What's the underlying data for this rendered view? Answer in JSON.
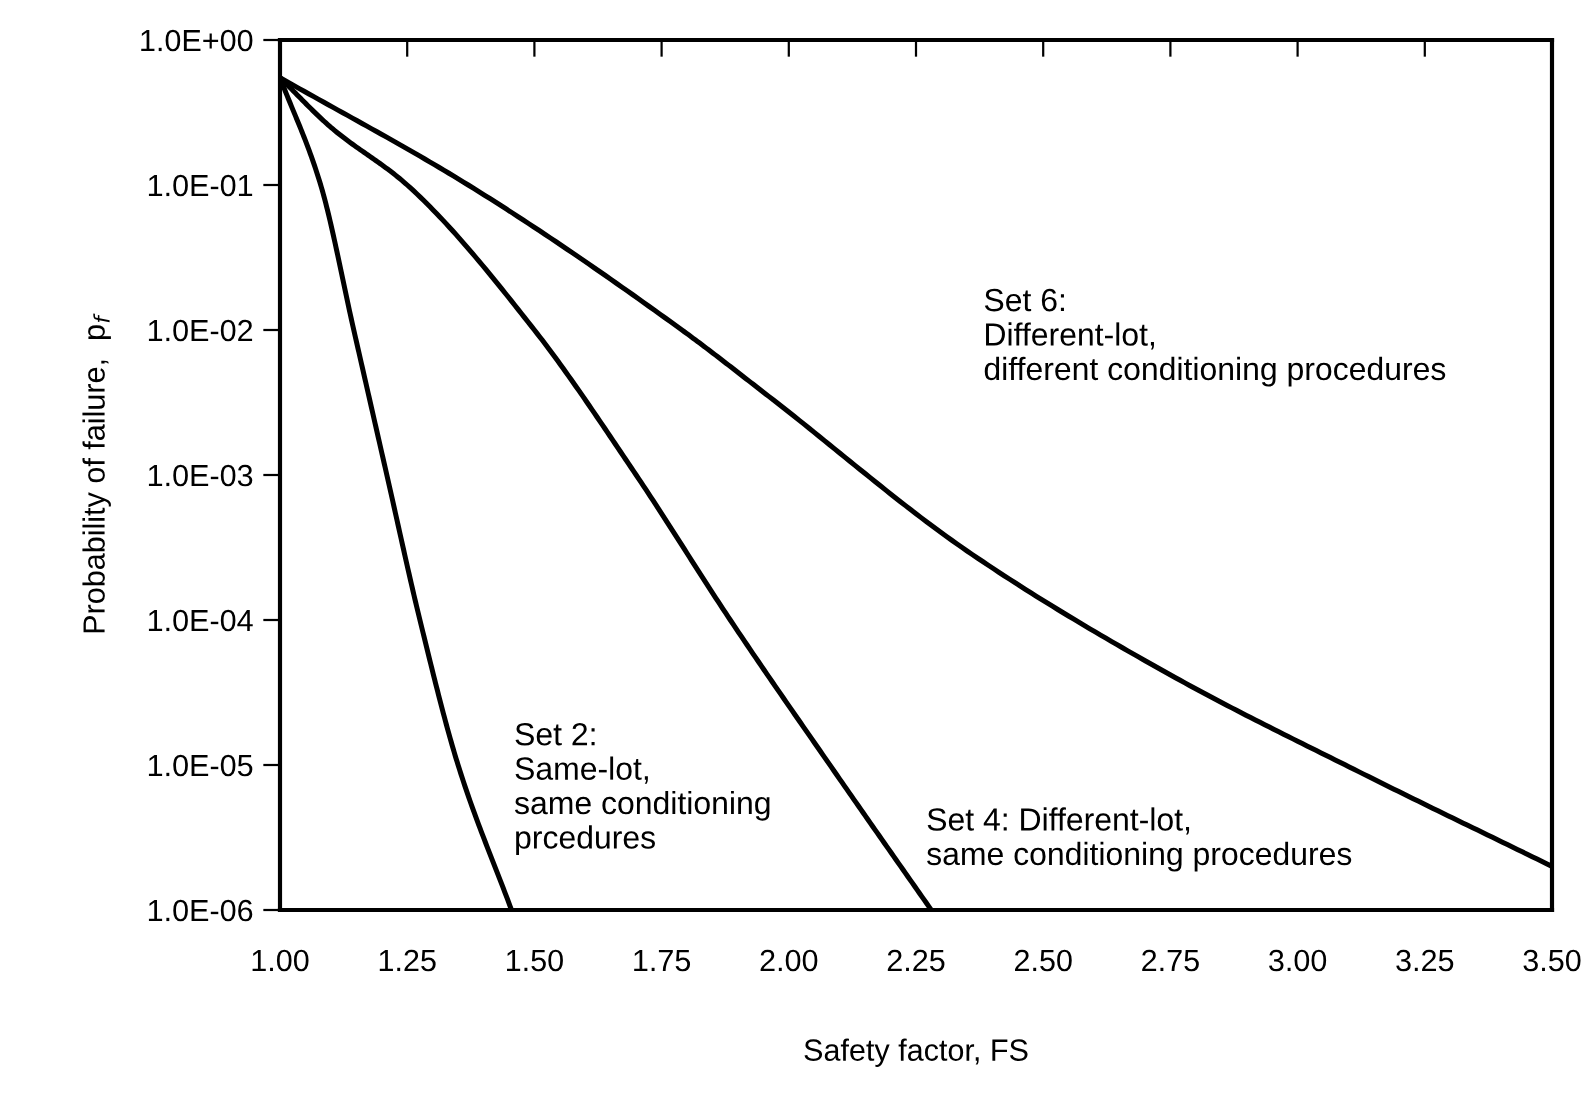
{
  "chart_data": {
    "type": "line",
    "xlabel": "Safety factor, FS",
    "ylabel": "Probability of failure,  p$_{f}$",
    "log": "y",
    "xlim": [
      1.0,
      3.5
    ],
    "ylim": [
      1e-06,
      1
    ],
    "xticks": [
      {
        "value": 1.0,
        "label": "1.00"
      },
      {
        "value": 1.25,
        "label": "1.25"
      },
      {
        "value": 1.5,
        "label": "1.50"
      },
      {
        "value": 1.75,
        "label": "1.75"
      },
      {
        "value": 2.0,
        "label": "2.00"
      },
      {
        "value": 2.25,
        "label": "2.25"
      },
      {
        "value": 2.5,
        "label": "2.50"
      },
      {
        "value": 2.75,
        "label": "2.75"
      },
      {
        "value": 3.0,
        "label": "3.00"
      },
      {
        "value": 3.25,
        "label": "3.25"
      },
      {
        "value": 3.5,
        "label": "3.50"
      }
    ],
    "yticks": [
      {
        "value": 1e-06,
        "label": "1.0E-06"
      },
      {
        "value": 1e-05,
        "label": "1.0E-05"
      },
      {
        "value": 0.0001,
        "label": "1.0E-04"
      },
      {
        "value": 0.001,
        "label": "1.0E-03"
      },
      {
        "value": 0.01,
        "label": "1.0E-02"
      },
      {
        "value": 0.1,
        "label": "1.0E-01"
      },
      {
        "value": 1,
        "label": "1.0E+00"
      }
    ],
    "grid": false,
    "marker": "none",
    "line_style": "solid",
    "series": [
      {
        "color": "#000000",
        "x": [
          1.0,
          1.08,
          1.145,
          1.21,
          1.275,
          1.35,
          1.455
        ],
        "values": [
          0.55,
          0.1,
          0.01,
          0.001,
          0.0001,
          1e-05,
          1e-06
        ]
      },
      {
        "color": "#000000",
        "x": [
          1.0,
          1.1,
          1.25,
          1.5,
          1.7,
          1.885,
          2.1,
          2.28
        ],
        "values": [
          0.55,
          0.25,
          0.1,
          0.01,
          0.001,
          0.0001,
          8e-06,
          1e-06
        ]
      },
      {
        "color": "#000000",
        "x": [
          1.0,
          1.37,
          1.79,
          1.96,
          2.35,
          2.76,
          3.12,
          3.5
        ],
        "values": [
          0.55,
          0.1,
          0.01,
          0.0035,
          0.0003,
          4e-05,
          9e-06,
          2e-06
        ]
      }
    ],
    "annotations": [
      "Set 2:\nSame-lot,\nsame conditioning\nprcedures",
      "Set 4: Different-lot,\nsame conditioning procedures",
      "Set 6:\nDifferent-lot,\ndifferent conditioning procedures"
    ]
  }
}
